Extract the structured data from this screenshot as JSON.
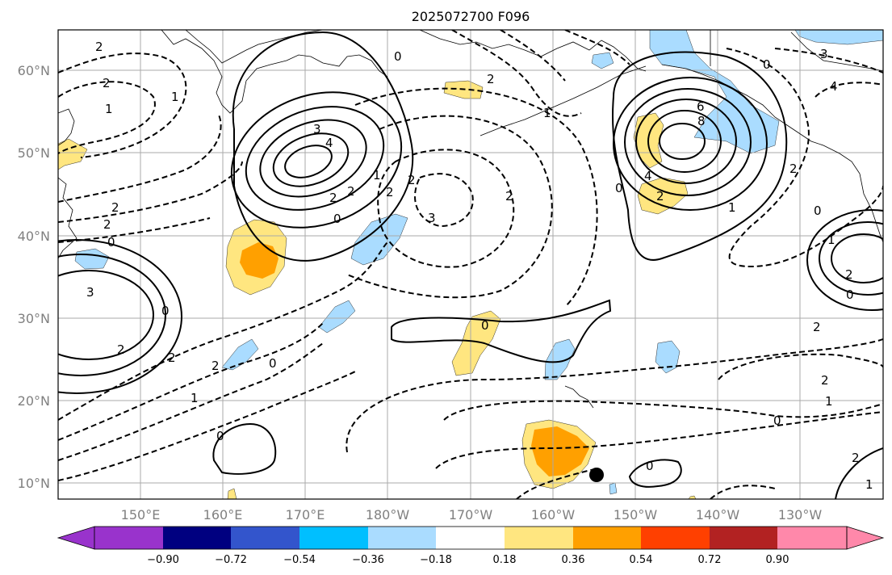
{
  "title": "2025072700 F096",
  "map": {
    "lon_ticks": [
      "150°E",
      "160°E",
      "170°E",
      "180°W",
      "170°W",
      "160°W",
      "150°W",
      "140°W",
      "130°W"
    ],
    "lat_ticks": [
      "60°N",
      "50°N",
      "40°N",
      "30°N",
      "20°N",
      "10°N"
    ],
    "contour_labels": [
      "2",
      "1",
      "2",
      "2",
      "0",
      "2",
      "3",
      "2",
      "3",
      "4",
      "2",
      "2",
      "1",
      "0",
      "2",
      "2",
      "2",
      "0",
      "1",
      "0",
      "2",
      "3",
      "2",
      "2",
      "1",
      "0",
      "0",
      "6",
      "8",
      "4",
      "2",
      "0",
      "1",
      "3",
      "4",
      "2",
      "0",
      "1",
      "2",
      "0",
      "0",
      "2",
      "2",
      "1",
      "0",
      "1",
      "0",
      "0",
      "2",
      "1"
    ]
  },
  "colorbar": {
    "tick_labels": [
      "−0.90",
      "−0.72",
      "−0.54",
      "−0.36",
      "−0.18",
      "0.18",
      "0.36",
      "0.54",
      "0.72",
      "0.90"
    ],
    "colors": [
      "#9933cc",
      "#000080",
      "#3355cc",
      "#00bfff",
      "#aadcff",
      "#ffffff",
      "#ffe680",
      "#ffa000",
      "#ff4000",
      "#b22222",
      "#ff88aa"
    ]
  },
  "marker": {
    "color": "#000000"
  }
}
